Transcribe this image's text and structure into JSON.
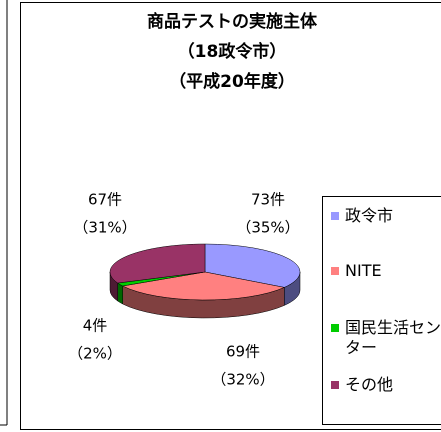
{
  "chart_data": {
    "type": "pie3d",
    "title": "商品テストの実施主体",
    "subtitle": [
      "（18政令市）",
      "（平成20年度）"
    ],
    "series": [
      {
        "name": "政令市",
        "color": "#9999ff",
        "values": [
          73
        ]
      },
      {
        "name": "NITE",
        "color": "#ff8080",
        "values": [
          69
        ]
      },
      {
        "name": "国民生活センター",
        "color": "#00cc00",
        "values": [
          4
        ]
      },
      {
        "name": "その他",
        "color": "#993366",
        "values": [
          67
        ]
      }
    ],
    "value_labels": [
      "73件",
      "69件",
      "4件",
      "67件"
    ],
    "percents": [
      35,
      32,
      2,
      31
    ],
    "percent_labels": [
      "（35%）",
      "（32%）",
      "（2%）",
      "（31%）"
    ],
    "legend": "right"
  }
}
